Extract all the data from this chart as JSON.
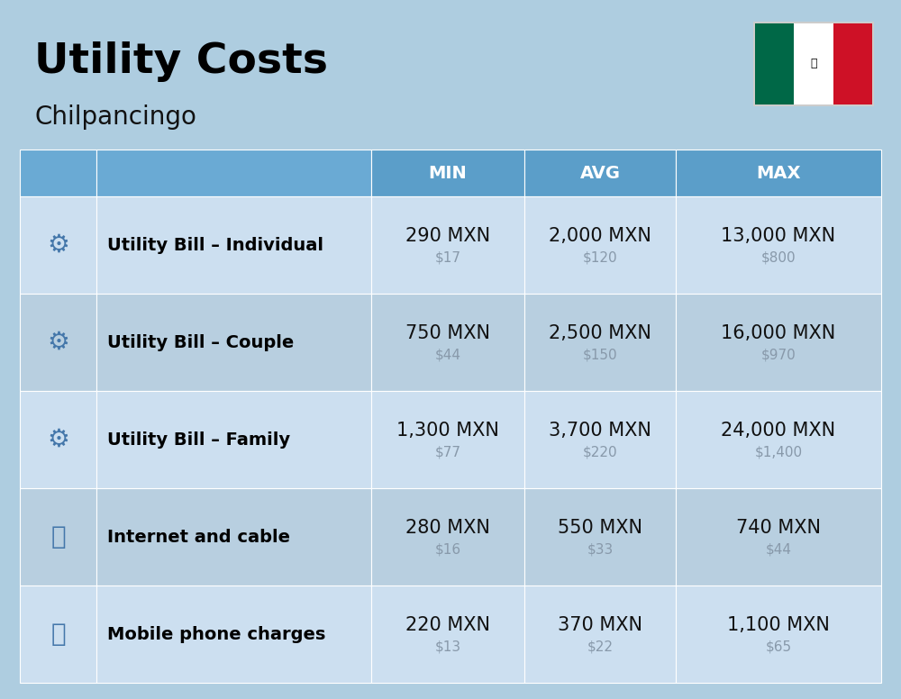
{
  "title": "Utility Costs",
  "subtitle": "Chilpancingo",
  "background_color": "#aecde0",
  "header_bg_color": "#5b9ec9",
  "header_text_color": "#ffffff",
  "row_bg_color_1": "#ccdff0",
  "row_bg_color_2": "#b8cfe0",
  "col_headers": [
    "MIN",
    "AVG",
    "MAX"
  ],
  "rows": [
    {
      "label": "Utility Bill – Individual",
      "min_mxn": "290 MXN",
      "min_usd": "$17",
      "avg_mxn": "2,000 MXN",
      "avg_usd": "$120",
      "max_mxn": "13,000 MXN",
      "max_usd": "$800"
    },
    {
      "label": "Utility Bill – Couple",
      "min_mxn": "750 MXN",
      "min_usd": "$44",
      "avg_mxn": "2,500 MXN",
      "avg_usd": "$150",
      "max_mxn": "16,000 MXN",
      "max_usd": "$970"
    },
    {
      "label": "Utility Bill – Family",
      "min_mxn": "1,300 MXN",
      "min_usd": "$77",
      "avg_mxn": "3,700 MXN",
      "avg_usd": "$220",
      "max_mxn": "24,000 MXN",
      "max_usd": "$1,400"
    },
    {
      "label": "Internet and cable",
      "min_mxn": "280 MXN",
      "min_usd": "$16",
      "avg_mxn": "550 MXN",
      "avg_usd": "$33",
      "max_mxn": "740 MXN",
      "max_usd": "$44"
    },
    {
      "label": "Mobile phone charges",
      "min_mxn": "220 MXN",
      "min_usd": "$13",
      "avg_mxn": "370 MXN",
      "avg_usd": "$22",
      "max_mxn": "1,100 MXN",
      "max_usd": "$65"
    }
  ],
  "title_fontsize": 34,
  "subtitle_fontsize": 20,
  "header_fontsize": 14,
  "label_fontsize": 14,
  "value_fontsize": 15,
  "usd_fontsize": 11,
  "usd_color": "#8899aa",
  "label_color": "#000000",
  "value_color": "#111111",
  "flag_green": "#006847",
  "flag_white": "#ffffff",
  "flag_red": "#ce1126"
}
